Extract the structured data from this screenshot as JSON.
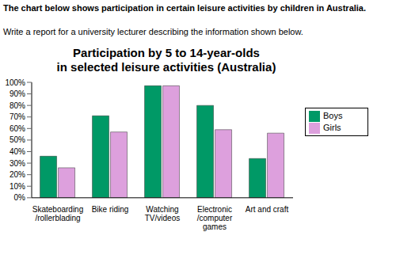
{
  "header": {
    "title": "The chart below shows participation in certain leisure activities by children in Australia.",
    "instruction": "Write a report for a university lecturer describing the information shown below."
  },
  "chart_data": {
    "type": "bar",
    "title": "Participation by 5 to 14-year-olds\nin selected leisure activities (Australia)",
    "categories": [
      "Skateboarding\n/rollerblading",
      "Bike riding",
      "Watching\nTV/videos",
      "Electronic\n/computer\ngames",
      "Art and craft"
    ],
    "series": [
      {
        "name": "Boys",
        "color": "#009966",
        "values": [
          36,
          71,
          97,
          80,
          34
        ]
      },
      {
        "name": "Girls",
        "color": "#dda0dd",
        "values": [
          26,
          57,
          97,
          59,
          56
        ]
      }
    ],
    "ylim": [
      0,
      100
    ],
    "yticks": [
      {
        "value": 0,
        "label": "0%"
      },
      {
        "value": 10,
        "label": "10%"
      },
      {
        "value": 20,
        "label": "20%"
      },
      {
        "value": 30,
        "label": "30%"
      },
      {
        "value": 40,
        "label": "40%"
      },
      {
        "value": 50,
        "label": "50%"
      },
      {
        "value": 60,
        "label": "60%"
      },
      {
        "value": 70,
        "label": "70%"
      },
      {
        "value": 80,
        "label": "80%"
      },
      {
        "value": 90,
        "label": "90%"
      },
      {
        "value": 100,
        "label": "100%"
      }
    ],
    "grid": false,
    "legend": "upper right"
  }
}
